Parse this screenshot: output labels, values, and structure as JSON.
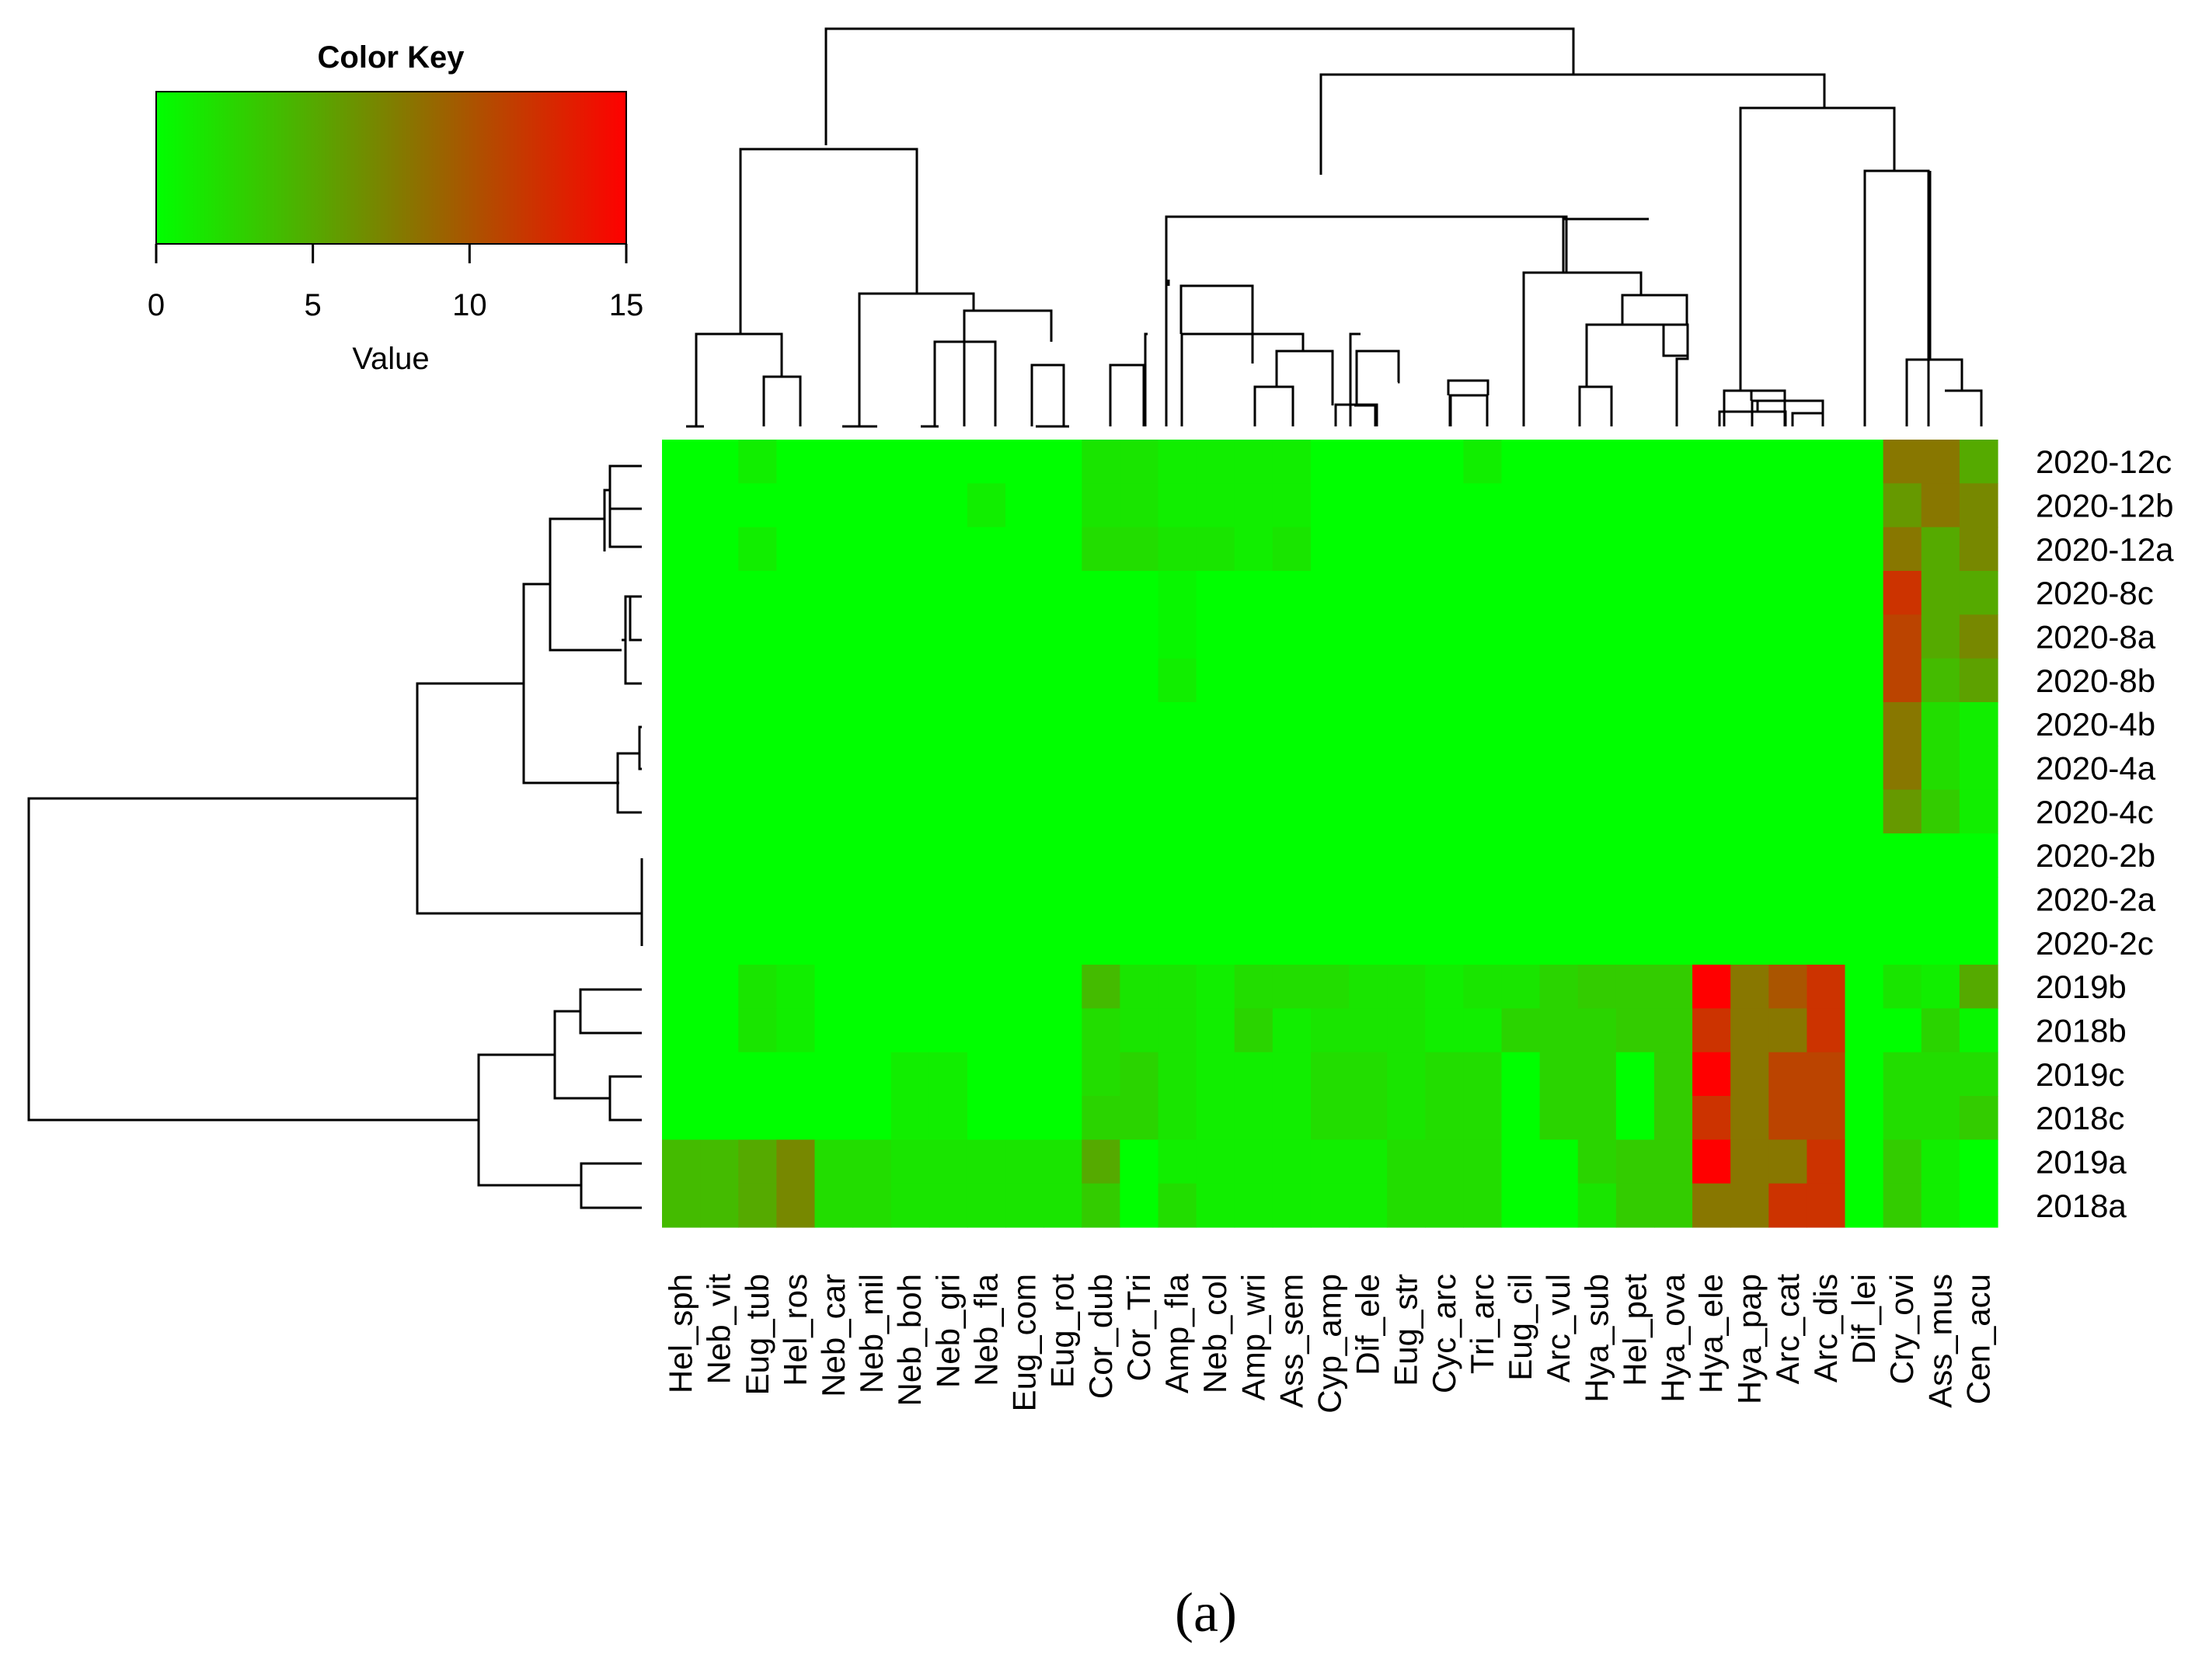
{
  "chart_data": {
    "type": "heatmap",
    "title": "",
    "color_key": {
      "title": "Color Key",
      "xlabel": "Value",
      "range": [
        0,
        15
      ],
      "ticks": [
        0,
        5,
        10,
        15
      ],
      "colors": [
        "#00ff00",
        "#7f7f00",
        "#ff0000"
      ]
    },
    "columns": [
      "Hel_sph",
      "Neb_vit",
      "Eug_tub",
      "Hel_ros",
      "Neb_car",
      "Neb_mil",
      "Neb_boh",
      "Neb_gri",
      "Neb_fla",
      "Eug_com",
      "Eug_rot",
      "Cor_dub",
      "Cor_Tri",
      "Amp_fla",
      "Neb_col",
      "Amp_wri",
      "Ass_sem",
      "Cyp_amp",
      "Dif_ele",
      "Eug_str",
      "Cyc_arc",
      "Tri_arc",
      "Eug_cil",
      "Arc_vul",
      "Hya_sub",
      "Hel_pet",
      "Hya_ova",
      "Hya_ele",
      "Hya_pap",
      "Arc_cat",
      "Arc_dis",
      "Dif_lei",
      "Cry_ovi",
      "Ass_mus",
      "Cen_acu"
    ],
    "rows": [
      "2020-12c",
      "2020-12b",
      "2020-12a",
      "2020-8c",
      "2020-8a",
      "2020-8b",
      "2020-4b",
      "2020-4a",
      "2020-4c",
      "2020-2b",
      "2020-2a",
      "2020-2c",
      "2019b",
      "2018b",
      "2019c",
      "2018c",
      "2019a",
      "2018a"
    ],
    "values": [
      [
        0,
        0,
        1,
        0,
        0,
        0,
        0,
        0,
        0,
        0,
        0,
        1.5,
        1.5,
        1,
        1,
        1,
        1,
        0,
        0,
        0,
        0,
        1,
        0,
        0,
        0,
        0,
        0,
        0,
        0,
        0,
        0,
        0,
        8,
        8,
        5
      ],
      [
        0,
        0,
        0,
        0,
        0,
        0,
        0,
        0,
        1,
        0,
        0,
        1.5,
        1.5,
        1,
        1,
        1,
        1,
        0,
        0,
        0,
        0,
        0,
        0,
        0,
        0,
        0,
        0,
        0,
        0,
        0,
        0,
        0,
        6,
        8,
        7
      ],
      [
        0,
        0,
        1,
        0,
        0,
        0,
        0,
        0,
        0,
        0,
        0,
        2,
        2,
        1.5,
        1.5,
        1,
        1.5,
        0,
        0,
        0,
        0,
        0,
        0,
        0,
        0,
        0,
        0,
        0,
        0,
        0,
        0,
        0,
        8,
        5,
        7
      ],
      [
        0,
        0,
        0,
        0,
        0,
        0,
        0,
        0,
        0,
        0,
        0,
        0,
        0,
        0.5,
        0,
        0,
        0,
        0,
        0,
        0,
        0,
        0,
        0,
        0,
        0,
        0,
        0,
        0,
        0,
        0,
        0,
        0,
        12,
        5,
        5
      ],
      [
        0,
        0,
        0,
        0,
        0,
        0,
        0,
        0,
        0,
        0,
        0,
        0,
        0,
        0.5,
        0,
        0,
        0,
        0,
        0,
        0,
        0,
        0,
        0,
        0,
        0,
        0,
        0,
        0,
        0,
        0,
        0,
        0,
        11,
        5,
        7
      ],
      [
        0,
        0,
        0,
        0,
        0,
        0,
        0,
        0,
        0,
        0,
        0,
        0,
        0,
        1,
        0,
        0,
        0,
        0,
        0,
        0,
        0,
        0,
        0,
        0,
        0,
        0,
        0,
        0,
        0,
        0,
        0,
        0,
        11,
        4,
        5.5
      ],
      [
        0,
        0,
        0,
        0,
        0,
        0,
        0,
        0,
        0,
        0,
        0,
        0,
        0,
        0,
        0,
        0,
        0,
        0,
        0,
        0,
        0,
        0,
        0,
        0,
        0,
        0,
        0,
        0,
        0,
        0,
        0,
        0,
        8,
        2,
        1
      ],
      [
        0,
        0,
        0,
        0,
        0,
        0,
        0,
        0,
        0,
        0,
        0,
        0,
        0,
        0,
        0,
        0,
        0,
        0,
        0,
        0,
        0,
        0,
        0,
        0,
        0,
        0,
        0,
        0,
        0,
        0,
        0,
        0,
        8,
        2,
        1
      ],
      [
        0,
        0,
        0,
        0,
        0,
        0,
        0,
        0,
        0,
        0,
        0,
        0,
        0,
        0,
        0,
        0,
        0,
        0,
        0,
        0,
        0,
        0,
        0,
        0,
        0,
        0,
        0,
        0,
        0,
        0,
        0,
        0,
        6,
        3,
        1
      ],
      [
        0,
        0,
        0,
        0,
        0,
        0,
        0,
        0,
        0,
        0,
        0,
        0,
        0,
        0,
        0,
        0,
        0,
        0,
        0,
        0,
        0,
        0,
        0,
        0,
        0,
        0,
        0,
        0,
        0,
        0,
        0,
        0,
        0,
        0,
        0
      ],
      [
        0,
        0,
        0,
        0,
        0,
        0,
        0,
        0,
        0,
        0,
        0,
        0,
        0,
        0,
        0,
        0,
        0,
        0,
        0,
        0,
        0,
        0,
        0,
        0,
        0,
        0,
        0,
        0,
        0,
        0,
        0,
        0,
        0,
        0,
        0
      ],
      [
        0,
        0,
        0,
        0,
        0,
        0,
        0,
        0,
        0,
        0,
        0,
        0,
        0,
        0,
        0,
        0,
        0,
        0,
        0,
        0,
        0,
        0,
        0,
        0,
        0,
        0,
        0,
        0,
        0,
        0,
        0,
        0,
        0,
        0,
        0
      ],
      [
        0,
        0,
        1.5,
        1,
        0,
        0,
        0,
        0,
        0,
        0,
        0,
        4,
        1.5,
        1.5,
        1,
        2,
        2,
        2,
        1.5,
        1.5,
        1,
        1.5,
        1.5,
        2.5,
        3,
        3,
        3,
        15,
        8,
        10,
        12,
        0,
        1.5,
        1,
        5
      ],
      [
        0,
        0,
        1.5,
        1,
        0,
        0,
        0,
        0,
        0,
        0,
        0,
        2,
        1.5,
        1.5,
        1,
        2.5,
        1,
        1.5,
        1.5,
        1.5,
        1,
        1,
        2.5,
        2.5,
        2.5,
        3,
        3,
        12,
        8,
        8,
        12,
        0,
        0,
        2.5,
        0.5
      ],
      [
        0,
        0,
        0,
        0,
        0,
        0,
        1,
        1,
        0,
        0,
        0,
        2,
        2.5,
        1.5,
        1,
        1,
        1,
        2,
        2,
        1.5,
        2,
        2,
        0,
        2.5,
        2.5,
        0,
        3,
        15,
        8,
        11,
        11,
        0,
        2,
        2,
        2
      ],
      [
        0,
        0,
        0,
        0,
        0,
        0,
        1,
        1,
        0,
        0,
        0,
        2.5,
        2.5,
        1.5,
        1,
        1,
        1,
        2,
        2,
        1.5,
        2,
        2,
        0,
        2.5,
        2.5,
        0,
        3,
        12,
        8,
        11,
        11,
        0,
        2,
        2,
        3
      ],
      [
        4,
        4,
        5,
        7,
        2,
        2,
        1.5,
        1.5,
        1.5,
        1.5,
        1.5,
        5,
        0,
        1,
        1,
        1,
        1,
        1,
        1,
        2,
        2,
        2,
        0,
        0,
        2.5,
        3,
        3,
        15,
        8,
        8,
        12,
        0,
        3,
        1,
        0
      ],
      [
        4,
        4,
        5,
        7,
        2,
        2,
        1.5,
        1.5,
        1.5,
        1.5,
        1.5,
        3,
        0,
        2,
        1,
        1,
        1,
        1,
        1,
        2,
        2,
        2,
        0,
        0,
        1.5,
        3,
        3,
        8,
        8,
        12,
        12,
        0,
        3,
        1,
        0
      ]
    ]
  },
  "caption": "(a)"
}
